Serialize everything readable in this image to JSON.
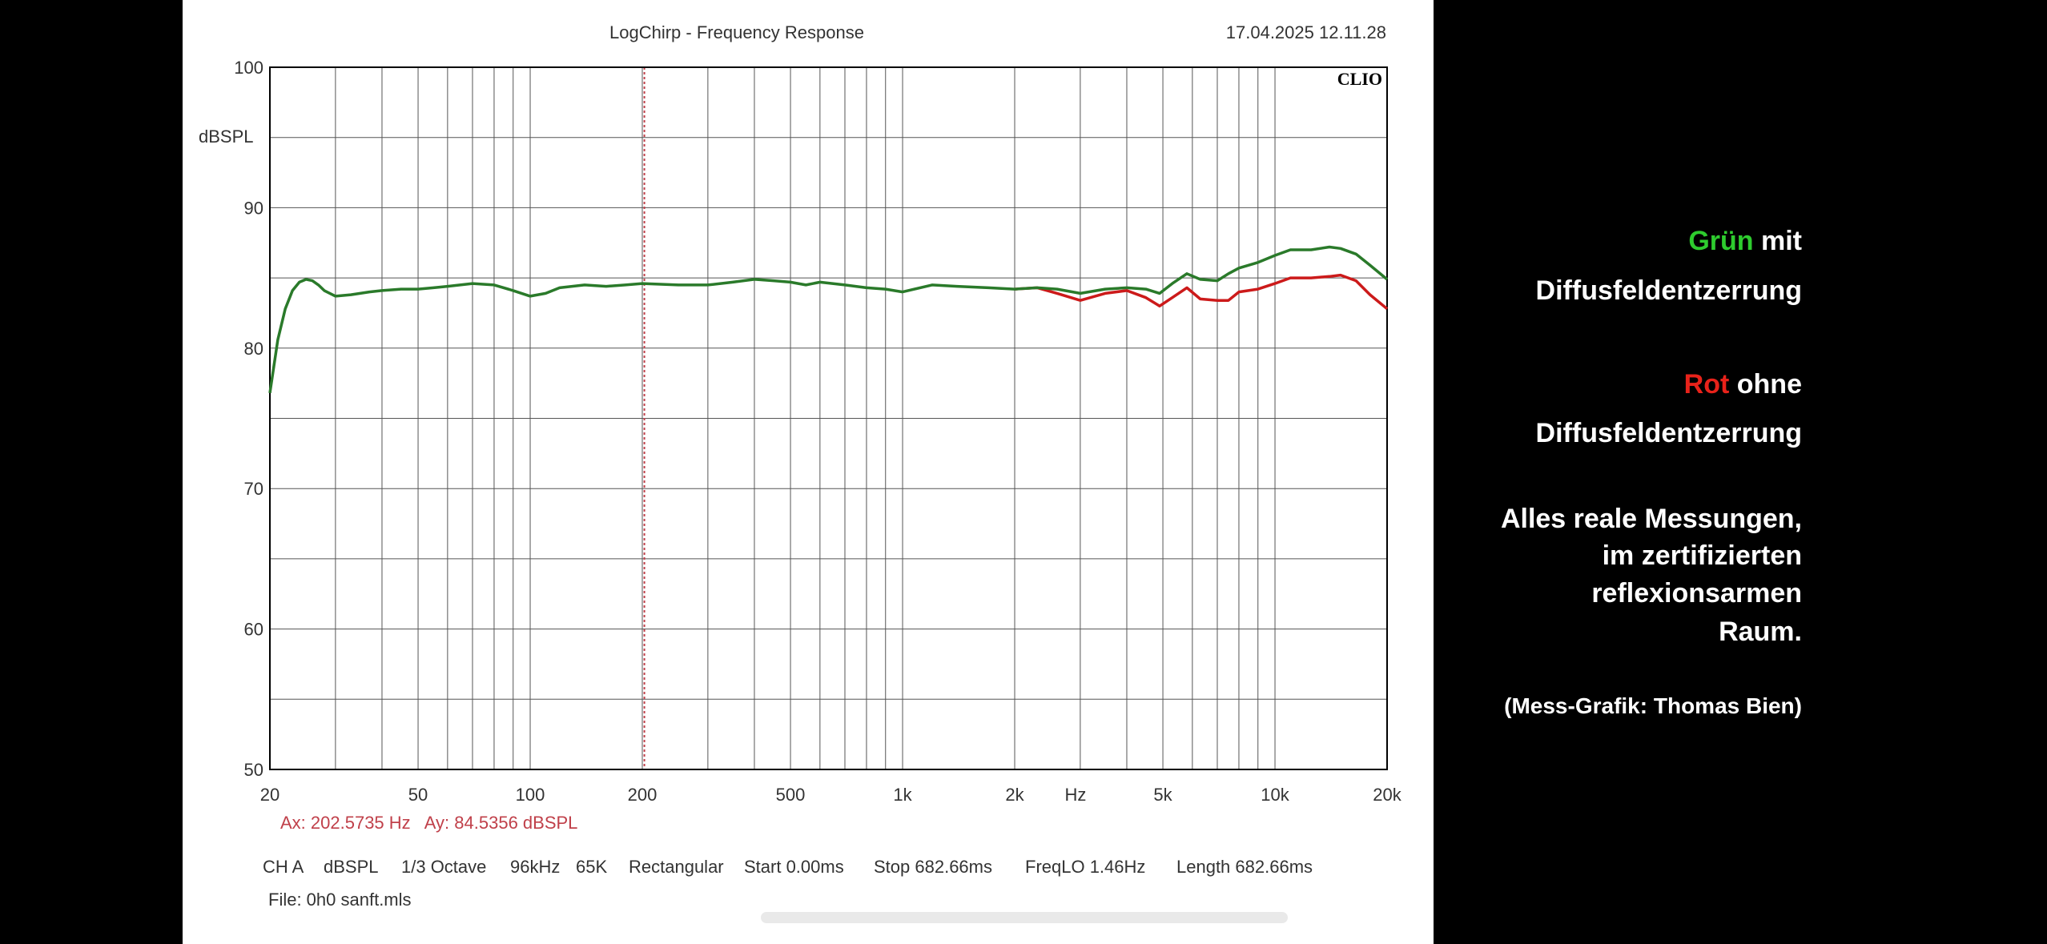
{
  "chart_data": {
    "type": "line",
    "title": "LogChirp - Frequency Response",
    "timestamp": "17.04.2025 12.11.28",
    "brand": "CLIO",
    "ylabel": "dBSPL",
    "xlabel": "Hz",
    "x_scale": "log",
    "xlim": [
      20,
      20000
    ],
    "ylim": [
      50,
      100
    ],
    "grid": true,
    "y_ticks": [
      50,
      60,
      70,
      80,
      90,
      100
    ],
    "y_tick_labels": [
      "50",
      "60",
      "70",
      "80",
      "90",
      "100"
    ],
    "x_ticks": [
      20,
      50,
      100,
      200,
      500,
      1000,
      2000,
      5000,
      10000,
      20000
    ],
    "x_tick_labels": [
      "20",
      "50",
      "100",
      "200",
      "500",
      "1k",
      "2k",
      "5k",
      "10k",
      "20k"
    ],
    "cursor": {
      "x": 202.5735,
      "y": 84.5356,
      "color": "#c0404a"
    },
    "cursor_readout": "Ax: 202.5735 Hz   Ay: 84.5356 dBSPL",
    "series": [
      {
        "color": "#cc1a1a",
        "x": [
          2000,
          2300,
          2600,
          3000,
          3500,
          4000,
          4500,
          4900,
          5300,
          5800,
          6300,
          7000,
          7500,
          8000,
          9000,
          10000,
          11000,
          12500,
          14000,
          15000,
          16500,
          18000,
          20000
        ],
        "y": [
          84.2,
          84.3,
          83.9,
          83.4,
          83.9,
          84.1,
          83.6,
          83.0,
          83.6,
          84.3,
          83.5,
          83.4,
          83.4,
          84.0,
          84.2,
          84.6,
          85.0,
          85.0,
          85.1,
          85.2,
          84.8,
          83.8,
          82.8
        ]
      },
      {
        "color": "#2a7a2a",
        "x": [
          20,
          21,
          22,
          23,
          24,
          25,
          26,
          27,
          28,
          30,
          33,
          37,
          40,
          45,
          50,
          55,
          60,
          70,
          80,
          90,
          100,
          110,
          120,
          140,
          160,
          180,
          200,
          250,
          300,
          350,
          400,
          450,
          500,
          550,
          600,
          700,
          800,
          900,
          1000,
          1200,
          1400,
          1700,
          2000,
          2300,
          2600,
          3000,
          3500,
          4000,
          4500,
          4900,
          5300,
          5800,
          6300,
          7000,
          7500,
          8000,
          9000,
          10000,
          11000,
          12500,
          14000,
          15000,
          16500,
          18000,
          20000
        ],
        "y": [
          76.8,
          80.6,
          82.8,
          84.1,
          84.7,
          84.9,
          84.8,
          84.5,
          84.1,
          83.7,
          83.8,
          84.0,
          84.1,
          84.2,
          84.2,
          84.3,
          84.4,
          84.6,
          84.5,
          84.1,
          83.7,
          83.9,
          84.3,
          84.5,
          84.4,
          84.5,
          84.6,
          84.5,
          84.5,
          84.7,
          84.9,
          84.8,
          84.7,
          84.5,
          84.7,
          84.5,
          84.3,
          84.2,
          84.0,
          84.5,
          84.4,
          84.3,
          84.2,
          84.3,
          84.2,
          83.9,
          84.2,
          84.3,
          84.2,
          83.9,
          84.6,
          85.3,
          84.9,
          84.8,
          85.3,
          85.7,
          86.1,
          86.6,
          87.0,
          87.0,
          87.2,
          87.1,
          86.7,
          85.9,
          84.9
        ]
      }
    ],
    "measurement_info": {
      "channel": "CH A",
      "unit": "dBSPL",
      "smoothing": "1/3 Octave",
      "sample_rate": "96kHz",
      "size": "65K",
      "window": "Rectangular",
      "start": "Start 0.00ms",
      "stop": "Stop 682.66ms",
      "freqlo": "FreqLO 1.46Hz",
      "length": "Length 682.66ms",
      "file": "File: 0h0 sanft.mls"
    }
  },
  "annotations": {
    "green_word": "Grün",
    "green_rest": " mit",
    "green_line2": "Diffusfeldentzerrung",
    "red_word": "Rot",
    "red_rest": " ohne",
    "red_line2": "Diffusfeldentzerrung",
    "note_lines": [
      "Alles reale Messungen,",
      "im zertifizierten",
      "reflexionsarmen",
      "Raum."
    ],
    "credit": "(Mess-Grafik: Thomas Bien)",
    "green_color": "#2ecc2e",
    "red_color": "#e8221a"
  }
}
